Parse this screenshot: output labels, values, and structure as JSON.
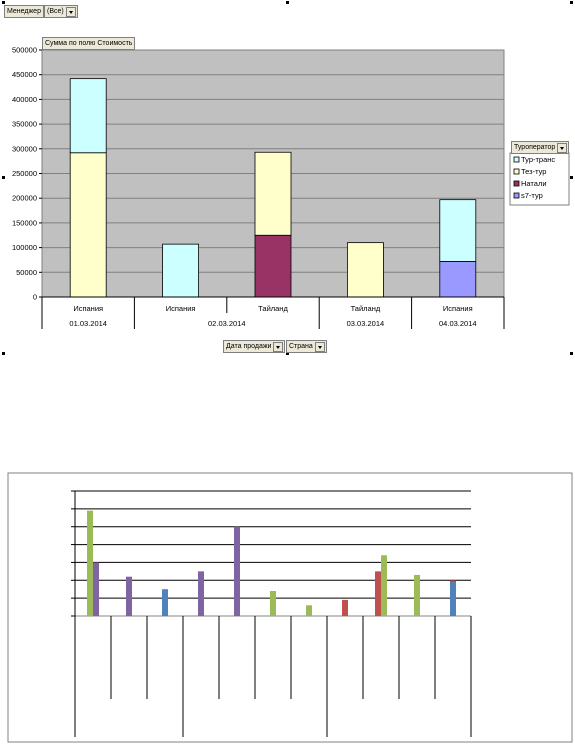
{
  "pivot_fields": {
    "manager_label": "Менеджер",
    "manager_value": "(Все)",
    "data_field": "Сумма по полю Стоимость",
    "legend_field": "Туроператор",
    "axis_fields": [
      "Дата продажи",
      "Страна"
    ]
  },
  "chart_data": [
    {
      "type": "bar",
      "stacked": true,
      "title": "",
      "xlabel": "",
      "ylabel": "",
      "ylim": [
        0,
        500000
      ],
      "yticks": [
        0,
        50000,
        100000,
        150000,
        200000,
        250000,
        300000,
        350000,
        400000,
        450000,
        500000
      ],
      "grid": true,
      "legend_position": "right",
      "categories": [
        "Испания",
        "Испания",
        "Тайланд",
        "Тайланд",
        "Испания"
      ],
      "category_groups": [
        {
          "label": "01.03.2014",
          "count": 1
        },
        {
          "label": "02.03.2014",
          "count": 2
        },
        {
          "label": "03.03.2014",
          "count": 1
        },
        {
          "label": "04.03.2014",
          "count": 1
        }
      ],
      "series": [
        {
          "name": "s7-тур",
          "color": "#9999ff",
          "values": [
            0,
            0,
            0,
            0,
            72000
          ]
        },
        {
          "name": "Натали",
          "color": "#993366",
          "values": [
            0,
            0,
            125000,
            0,
            0
          ]
        },
        {
          "name": "Тез-тур",
          "color": "#ffffcc",
          "values": [
            292000,
            0,
            168000,
            110000,
            0
          ]
        },
        {
          "name": "Тур-транс",
          "color": "#ccffff",
          "values": [
            150000,
            107000,
            0,
            0,
            125000
          ]
        }
      ],
      "legend_order": [
        "Тур-транс",
        "Тез-тур",
        "Натали",
        "s7-тур"
      ]
    },
    {
      "type": "bar",
      "title": "",
      "xlabel": "",
      "ylabel": "",
      "ylim": [
        0,
        7
      ],
      "grid": true,
      "values_approximate": true,
      "bars": [
        {
          "slot": 0,
          "color": "#9bbb59",
          "value": 5.9
        },
        {
          "slot": 0,
          "color": "#8064a2",
          "value": 3.0
        },
        {
          "slot": 1,
          "color": "#8064a2",
          "value": 2.2
        },
        {
          "slot": 2,
          "color": "#4f81bd",
          "value": 1.5
        },
        {
          "slot": 3,
          "color": "#8064a2",
          "value": 2.5
        },
        {
          "slot": 4,
          "color": "#8064a2",
          "value": 5.0
        },
        {
          "slot": 5,
          "color": "#9bbb59",
          "value": 1.4
        },
        {
          "slot": 6,
          "color": "#9bbb59",
          "value": 0.6
        },
        {
          "slot": 7,
          "color": "#c0504d",
          "value": 0.9
        },
        {
          "slot": 8,
          "color": "#c0504d",
          "value": 2.5
        },
        {
          "slot": 8,
          "color": "#9bbb59",
          "value": 3.4
        },
        {
          "slot": 9,
          "color": "#9bbb59",
          "value": 2.3
        },
        {
          "slot": 10,
          "color": "#c0504d",
          "value": 2.0
        },
        {
          "slot": 11,
          "color": "#4f81bd",
          "value": 1.9
        }
      ]
    }
  ]
}
